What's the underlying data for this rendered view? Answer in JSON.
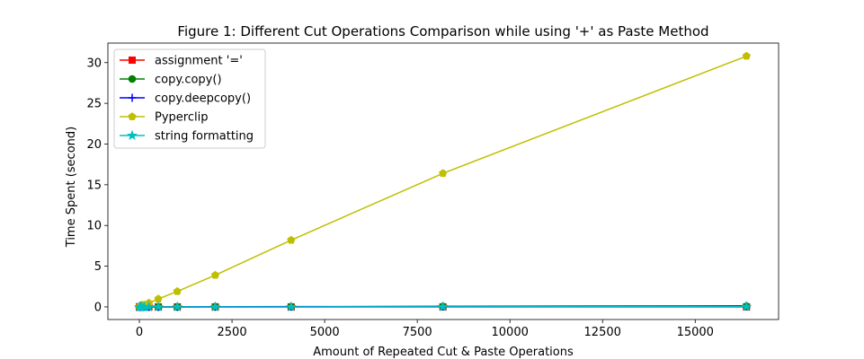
{
  "chart_data": {
    "type": "line",
    "title": "Figure 1: Different Cut Operations Comparison while using '+' as Paste Method",
    "xlabel": "Amount of Repeated Cut & Paste Operations",
    "ylabel": "Time Spent (second)",
    "xlim": [
      -850,
      17250
    ],
    "ylim": [
      -1.55,
      32.4
    ],
    "xticks": [
      0,
      2500,
      5000,
      7500,
      10000,
      12500,
      15000
    ],
    "yticks": [
      0,
      5,
      10,
      15,
      20,
      25,
      30
    ],
    "x": [
      2,
      4,
      8,
      16,
      32,
      64,
      128,
      256,
      512,
      1024,
      2048,
      4096,
      8192,
      16384
    ],
    "legend_position": "upper-left",
    "grid": false,
    "series": [
      {
        "name": "assignment '='",
        "color": "#ff0000",
        "marker": "square",
        "values": [
          0,
          0,
          0,
          0,
          0,
          0,
          0,
          0,
          0,
          0,
          0,
          0,
          0,
          0
        ]
      },
      {
        "name": "copy.copy()",
        "color": "#008000",
        "marker": "circle",
        "values": [
          0,
          0,
          0,
          0,
          0,
          0,
          0,
          0,
          0,
          0,
          0.01,
          0.02,
          0.04,
          0.07
        ]
      },
      {
        "name": "copy.deepcopy()",
        "color": "#0000ff",
        "marker": "plus",
        "values": [
          0,
          0,
          0,
          0,
          0,
          0,
          0,
          0,
          0,
          0.01,
          0.02,
          0.03,
          0.06,
          0.12
        ]
      },
      {
        "name": "Pyperclip",
        "color": "#bfbf00",
        "marker": "pentagon",
        "values": [
          0.01,
          0.02,
          0.03,
          0.06,
          0.12,
          0.24,
          0.24,
          0.48,
          0.98,
          1.9,
          3.9,
          8.2,
          16.4,
          30.8
        ]
      },
      {
        "name": "string formatting",
        "color": "#00bfbf",
        "marker": "star",
        "values": [
          0,
          0,
          0,
          0,
          0,
          0,
          0,
          0,
          0,
          0,
          0,
          0,
          0.01,
          0.02
        ]
      }
    ]
  }
}
